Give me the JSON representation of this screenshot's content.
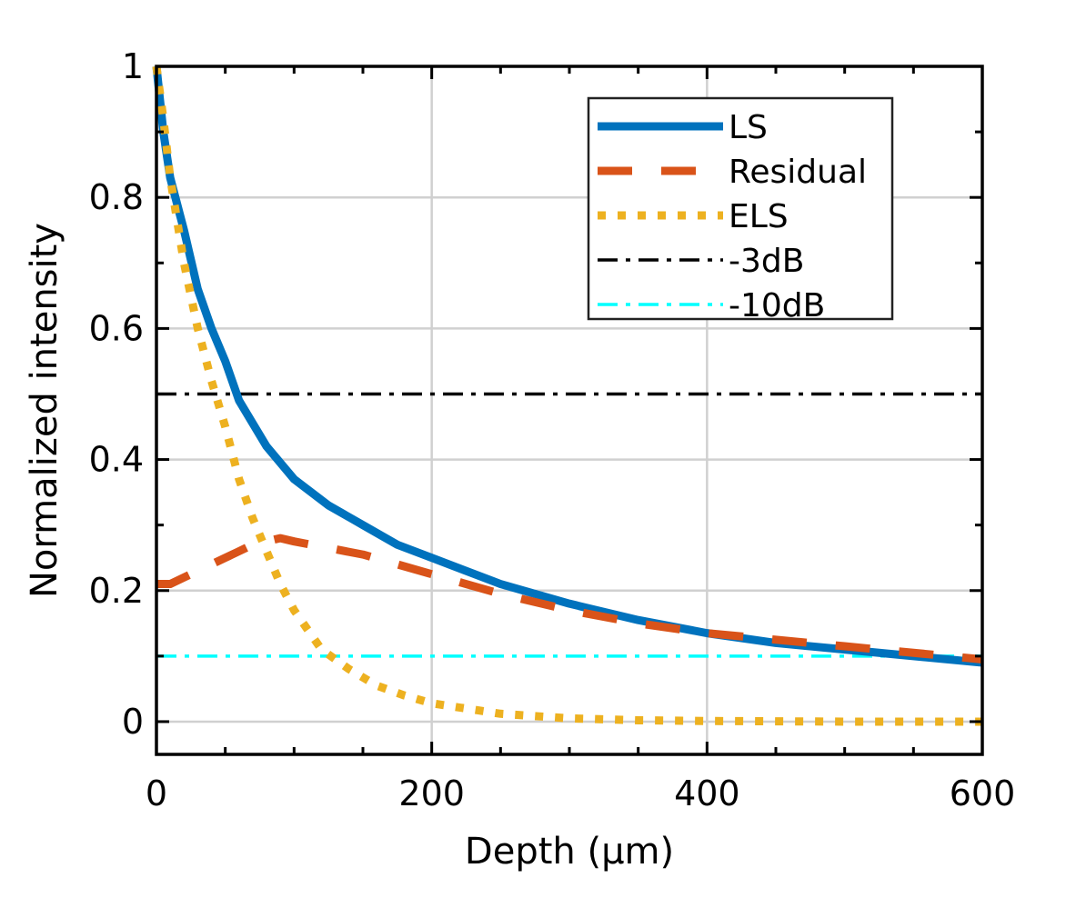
{
  "chart_data": {
    "type": "line",
    "xlabel": "Depth (μm)",
    "ylabel": "Normalized intensity",
    "xlim": [
      0,
      600
    ],
    "ylim": [
      -0.05,
      1
    ],
    "xticks": [
      0,
      200,
      400,
      600
    ],
    "xtick_labels": [
      "0",
      "200",
      "400",
      "600"
    ],
    "yticks": [
      0,
      0.2,
      0.4,
      0.6,
      0.8,
      1
    ],
    "ytick_labels": [
      "0",
      "0.2",
      "0.4",
      "0.6",
      "0.8",
      "1"
    ],
    "grid": true,
    "legend_position": "top-right",
    "series": [
      {
        "name": "LS",
        "color": "#0072BD",
        "style": "solid",
        "x": [
          0,
          5,
          10,
          20,
          30,
          40,
          50,
          60,
          80,
          100,
          125,
          150,
          175,
          200,
          250,
          300,
          350,
          400,
          450,
          500,
          550,
          600
        ],
        "y": [
          1.0,
          0.9,
          0.83,
          0.75,
          0.66,
          0.6,
          0.55,
          0.49,
          0.42,
          0.37,
          0.33,
          0.3,
          0.27,
          0.25,
          0.21,
          0.18,
          0.155,
          0.135,
          0.12,
          0.11,
          0.1,
          0.09
        ]
      },
      {
        "name": "Residual",
        "color": "#D95319",
        "style": "dashed",
        "x": [
          0,
          10,
          20,
          30,
          40,
          50,
          60,
          70,
          80,
          90,
          100,
          125,
          150,
          175,
          200,
          250,
          300,
          350,
          400,
          450,
          500,
          550,
          600
        ],
        "y": [
          0.21,
          0.21,
          0.22,
          0.23,
          0.24,
          0.25,
          0.26,
          0.27,
          0.275,
          0.28,
          0.275,
          0.265,
          0.255,
          0.24,
          0.225,
          0.195,
          0.17,
          0.15,
          0.135,
          0.125,
          0.115,
          0.105,
          0.095
        ]
      },
      {
        "name": "ELS",
        "color": "#EDB120",
        "style": "dotted",
        "x": [
          0,
          5,
          10,
          20,
          30,
          40,
          50,
          60,
          70,
          80,
          90,
          100,
          110,
          120,
          140,
          160,
          180,
          200,
          250,
          300,
          350,
          400,
          450,
          500,
          550,
          600
        ],
        "y": [
          1.0,
          0.92,
          0.83,
          0.7,
          0.6,
          0.52,
          0.45,
          0.37,
          0.31,
          0.26,
          0.21,
          0.17,
          0.14,
          0.11,
          0.08,
          0.055,
          0.04,
          0.028,
          0.012,
          0.005,
          0.002,
          0.001,
          0.0005,
          0.0,
          0.0,
          0.0
        ]
      },
      {
        "name": "-3dB",
        "color": "#000000",
        "style": "dashdot",
        "x": [
          0,
          600
        ],
        "y": [
          0.5,
          0.5
        ]
      },
      {
        "name": "-10dB",
        "color": "#00FFFF",
        "style": "dashdot",
        "x": [
          0,
          600
        ],
        "y": [
          0.1,
          0.1
        ]
      }
    ]
  }
}
